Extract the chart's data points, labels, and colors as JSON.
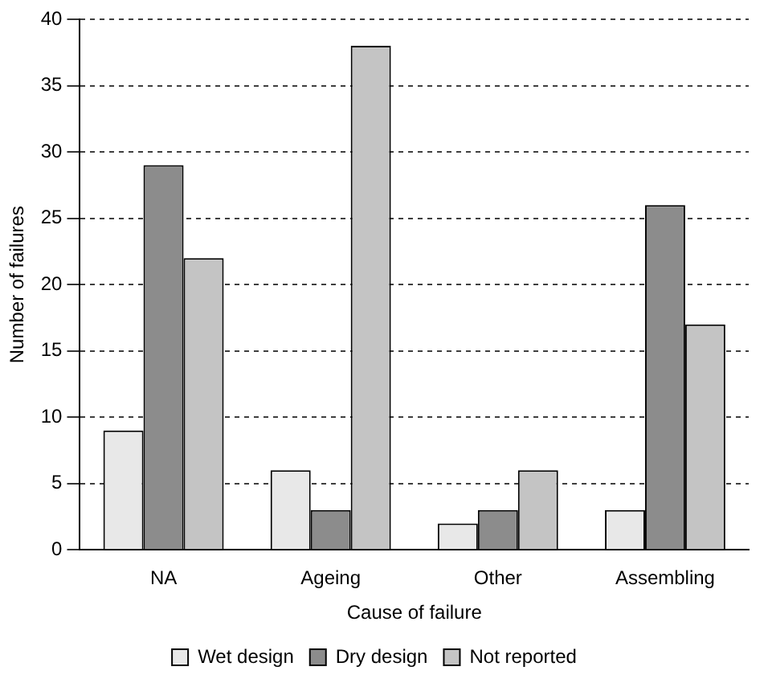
{
  "chart_data": {
    "type": "bar",
    "xlabel": "Cause of failure",
    "ylabel": "Number of failures",
    "categories": [
      "NA",
      "Ageing",
      "Other",
      "Assembling"
    ],
    "series": [
      {
        "name": "Wet design",
        "color": "#e8e8e8",
        "values": [
          9,
          6,
          2,
          3
        ]
      },
      {
        "name": "Dry design",
        "color": "#8c8c8c",
        "values": [
          29,
          3,
          3,
          26
        ]
      },
      {
        "name": "Not reported",
        "color": "#c4c4c4",
        "values": [
          22,
          38,
          6,
          17
        ]
      }
    ],
    "ylim": [
      0,
      40
    ],
    "yticks": [
      0,
      5,
      10,
      15,
      20,
      25,
      30,
      35,
      40
    ],
    "grid": "y",
    "legend": "bottom"
  }
}
